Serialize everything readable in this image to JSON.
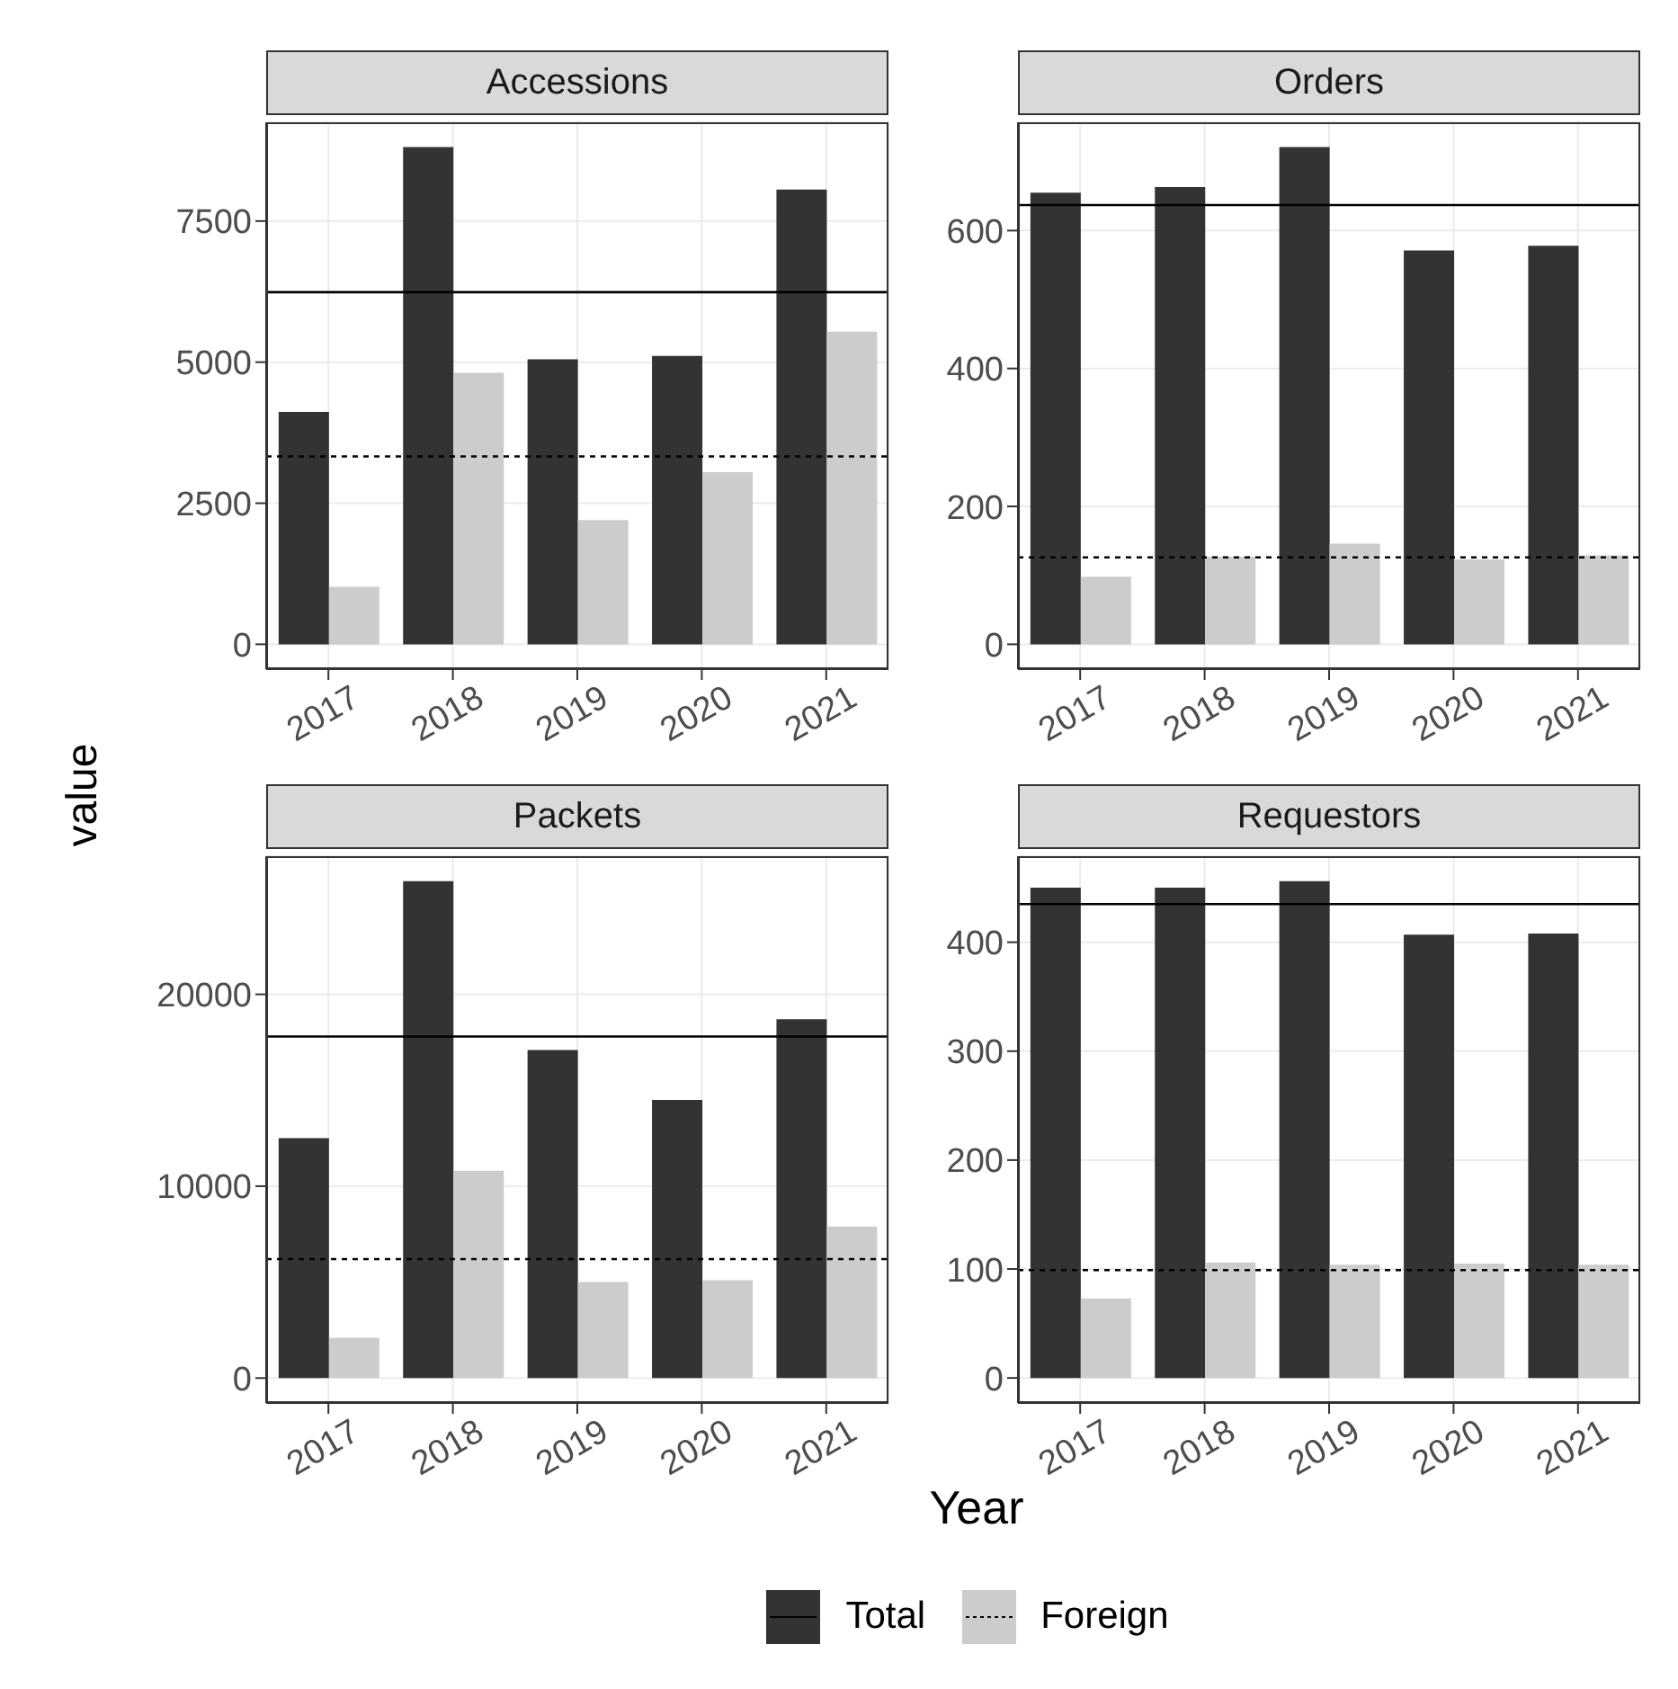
{
  "chart_data": [
    {
      "type": "bar",
      "title": "Accessions",
      "ylabel": "value",
      "categories": [
        "2017",
        "2018",
        "2019",
        "2020",
        "2021"
      ],
      "ylim": [
        -440,
        9250
      ],
      "yticks": [
        0,
        2500,
        5000,
        7500
      ],
      "grid": true,
      "legend": "bottom",
      "series": [
        {
          "name": "Total",
          "color": "#333333",
          "values": [
            4120,
            8810,
            5050,
            5110,
            8060
          ]
        },
        {
          "name": "Foreign",
          "color": "#cccccc",
          "values": [
            1020,
            4810,
            2200,
            3050,
            5540
          ]
        }
      ],
      "ref_lines": [
        {
          "axis": "y",
          "value": 6240,
          "line_style": "solid",
          "color": "#000000"
        },
        {
          "axis": "y",
          "value": 3330,
          "line_style": "dotted",
          "color": "#000000"
        }
      ]
    },
    {
      "type": "bar",
      "title": "Orders",
      "categories": [
        "2017",
        "2018",
        "2019",
        "2020",
        "2021"
      ],
      "ylim": [
        -36,
        757
      ],
      "yticks": [
        0,
        200,
        400,
        600
      ],
      "grid": true,
      "series": [
        {
          "color": "#333333",
          "values": [
            655,
            663,
            721,
            571,
            578
          ]
        },
        {
          "color": "#cccccc",
          "values": [
            98,
            127,
            146,
            123,
            129
          ]
        }
      ],
      "ref_lines": [
        {
          "axis": "y",
          "value": 637,
          "line_style": "solid",
          "color": "#000000"
        },
        {
          "axis": "y",
          "value": 126,
          "line_style": "dotted",
          "color": "#000000"
        }
      ]
    },
    {
      "type": "bar",
      "title": "Packets",
      "xlabel": "Year",
      "categories": [
        "2017",
        "2018",
        "2019",
        "2020",
        "2021"
      ],
      "ylim": [
        -1300,
        27200
      ],
      "yticks": [
        0,
        10000,
        20000
      ],
      "grid": true,
      "series": [
        {
          "color": "#333333",
          "values": [
            12500,
            25900,
            17100,
            14500,
            18700
          ]
        },
        {
          "color": "#cccccc",
          "values": [
            2100,
            10800,
            5000,
            5100,
            7900
          ]
        }
      ],
      "ref_lines": [
        {
          "axis": "y",
          "value": 17800,
          "line_style": "solid",
          "color": "#000000"
        },
        {
          "axis": "y",
          "value": 6200,
          "line_style": "dotted",
          "color": "#000000"
        }
      ]
    },
    {
      "type": "bar",
      "title": "Requestors",
      "categories": [
        "2017",
        "2018",
        "2019",
        "2020",
        "2021"
      ],
      "ylim": [
        -23,
        479
      ],
      "yticks": [
        0,
        100,
        200,
        300,
        400
      ],
      "grid": true,
      "series": [
        {
          "color": "#333333",
          "values": [
            450,
            450,
            456,
            407,
            408
          ]
        },
        {
          "color": "#cccccc",
          "values": [
            73,
            106,
            104,
            105,
            104
          ]
        }
      ],
      "ref_lines": [
        {
          "axis": "y",
          "value": 435,
          "line_style": "solid",
          "color": "#000000"
        },
        {
          "axis": "y",
          "value": 99,
          "line_style": "dotted",
          "color": "#000000"
        }
      ]
    }
  ]
}
